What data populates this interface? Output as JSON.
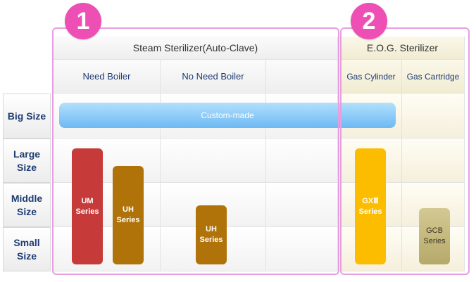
{
  "badges": {
    "group1": "1",
    "group2": "2"
  },
  "steam": {
    "title": "Steam Sterilizer(Auto-Clave)",
    "col_need_boiler": "Need Boiler",
    "col_no_need_boiler": "No Need Boiler",
    "col_empty": ""
  },
  "eog": {
    "title": "E.O.G. Sterilizer",
    "col_gas_cylinder": "Gas Cylinder",
    "col_gas_cartridge": "Gas Cartridge"
  },
  "rows": {
    "big": "Big Size",
    "large": "Large\nSize",
    "middle": "Middle\nSize",
    "small": "Small\nSize"
  },
  "bars": {
    "custom_made": "Custom-made",
    "um": "UM\nSeries",
    "uh_boiler": "UH\nSeries",
    "uh_no_boiler": "UH\nSeries",
    "gx": "GXⅢ\nSeries",
    "gcb": "GCB\nSeries"
  },
  "colors": {
    "badge": "#ee4fb4",
    "group_border": "#e79ee0",
    "custom_made": "#7cc4f6",
    "um": "#c73a3a",
    "uh": "#b0730a",
    "gx": "#fcbc00",
    "gcb": "#b9ad6f",
    "row_label_text": "#1e3d73"
  }
}
